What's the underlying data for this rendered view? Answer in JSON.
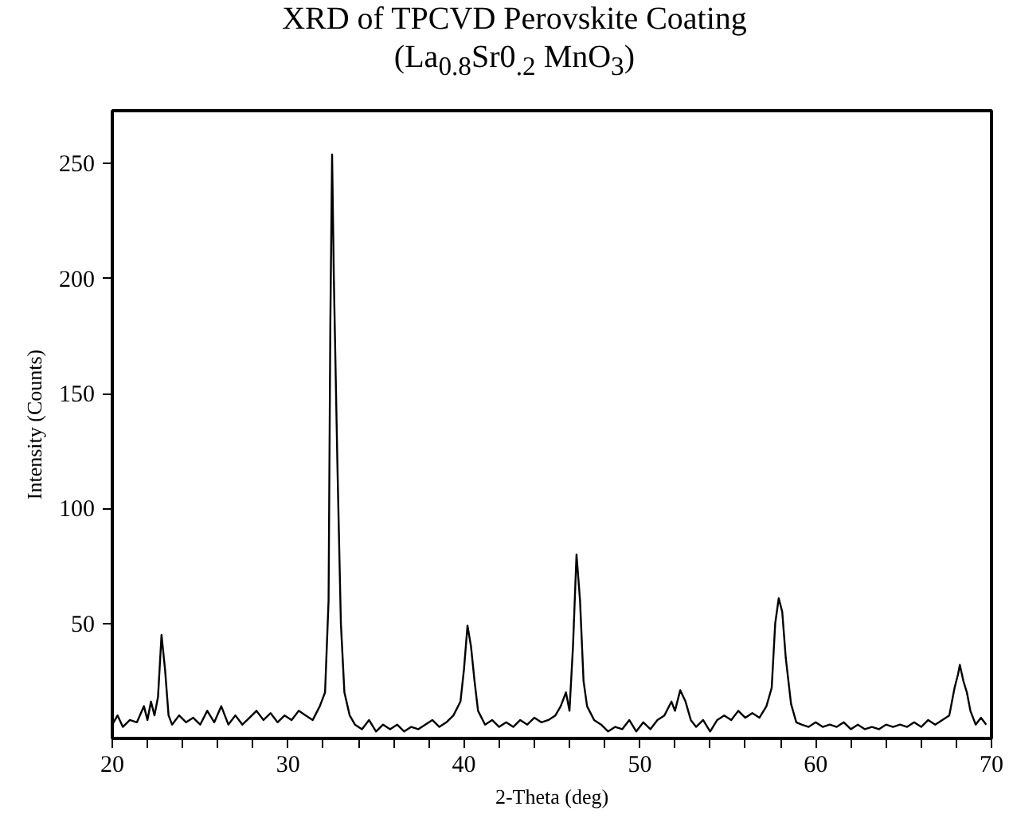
{
  "chart_data": {
    "type": "line",
    "title": "XRD of TPCVD Perovskite Coating",
    "subtitle": "(La$_{0.8}$Sr0$_{.2}$ MnO$_{3}$)",
    "xlabel": "2-Theta (deg)",
    "ylabel": "Intensity (Counts)",
    "xlim": [
      20,
      70
    ],
    "ylim": [
      0,
      273
    ],
    "xticks": [
      20,
      {
        "value": 22,
        "label": null
      },
      {
        "value": 24,
        "label": null
      },
      {
        "value": 26,
        "label": null
      },
      {
        "value": 28,
        "label": null
      },
      30,
      {
        "value": 32,
        "label": null
      },
      {
        "value": 34,
        "label": null
      },
      {
        "value": 36,
        "label": null
      },
      {
        "value": 38,
        "label": null
      },
      40,
      {
        "value": 42,
        "label": null
      },
      {
        "value": 44,
        "label": null
      },
      {
        "value": 46,
        "label": null
      },
      {
        "value": 48,
        "label": null
      },
      50,
      {
        "value": 52,
        "label": null
      },
      {
        "value": 54,
        "label": null
      },
      {
        "value": 56,
        "label": null
      },
      {
        "value": 58,
        "label": null
      },
      60,
      {
        "value": 62,
        "label": null
      },
      {
        "value": 64,
        "label": null
      },
      {
        "value": 66,
        "label": null
      },
      {
        "value": 68,
        "label": null
      },
      70
    ],
    "yticks": [
      50,
      100,
      150,
      200,
      250
    ],
    "grid": false,
    "series": [
      {
        "color": "#000000",
        "x": [
          20.0,
          20.3,
          20.6,
          21.0,
          21.4,
          21.8,
          22.0,
          22.2,
          22.4,
          22.6,
          22.8,
          23.0,
          23.2,
          23.4,
          23.8,
          24.2,
          24.6,
          25.0,
          25.4,
          25.8,
          26.2,
          26.6,
          27.0,
          27.4,
          27.8,
          28.2,
          28.6,
          29.0,
          29.4,
          29.8,
          30.2,
          30.6,
          31.0,
          31.4,
          31.8,
          32.1,
          32.3,
          32.4,
          32.5,
          32.6,
          32.8,
          33.0,
          33.2,
          33.5,
          33.8,
          34.2,
          34.6,
          35.0,
          35.4,
          35.8,
          36.2,
          36.6,
          37.0,
          37.4,
          37.8,
          38.2,
          38.6,
          39.0,
          39.4,
          39.8,
          40.0,
          40.2,
          40.4,
          40.6,
          40.8,
          41.2,
          41.6,
          42.0,
          42.4,
          42.8,
          43.2,
          43.6,
          44.0,
          44.4,
          44.8,
          45.2,
          45.5,
          45.8,
          46.0,
          46.2,
          46.4,
          46.6,
          46.8,
          47.0,
          47.4,
          47.8,
          48.2,
          48.6,
          49.0,
          49.4,
          49.8,
          50.2,
          50.6,
          51.0,
          51.4,
          51.8,
          52.0,
          52.3,
          52.6,
          52.9,
          53.2,
          53.6,
          54.0,
          54.4,
          54.8,
          55.2,
          55.6,
          56.0,
          56.4,
          56.8,
          57.2,
          57.5,
          57.7,
          57.9,
          58.1,
          58.3,
          58.6,
          58.9,
          59.2,
          59.6,
          60.0,
          60.4,
          60.8,
          61.2,
          61.6,
          62.0,
          62.4,
          62.8,
          63.2,
          63.6,
          64.0,
          64.4,
          64.8,
          65.2,
          65.6,
          66.0,
          66.4,
          66.8,
          67.2,
          67.6,
          67.9,
          68.1,
          68.2,
          68.4,
          68.6,
          68.8,
          69.1,
          69.4,
          69.7
        ],
        "values": [
          6,
          10,
          5,
          8,
          7,
          14,
          8,
          16,
          10,
          18,
          45,
          30,
          10,
          6,
          10,
          7,
          9,
          6,
          12,
          7,
          14,
          6,
          10,
          6,
          9,
          12,
          8,
          11,
          7,
          10,
          8,
          12,
          10,
          8,
          14,
          20,
          60,
          180,
          254,
          200,
          120,
          50,
          20,
          10,
          6,
          4,
          8,
          3,
          6,
          4,
          6,
          3,
          5,
          4,
          6,
          8,
          5,
          7,
          10,
          16,
          30,
          49,
          40,
          25,
          12,
          6,
          8,
          5,
          7,
          5,
          8,
          6,
          9,
          7,
          8,
          10,
          14,
          20,
          12,
          40,
          80,
          60,
          25,
          14,
          8,
          6,
          3,
          5,
          4,
          8,
          3,
          7,
          4,
          8,
          10,
          16,
          12,
          21,
          16,
          8,
          5,
          8,
          3,
          8,
          10,
          8,
          12,
          9,
          11,
          9,
          14,
          22,
          50,
          61,
          55,
          35,
          15,
          7,
          6,
          5,
          7,
          5,
          6,
          5,
          7,
          4,
          6,
          4,
          5,
          4,
          6,
          5,
          6,
          5,
          7,
          5,
          8,
          6,
          8,
          10,
          22,
          28,
          32,
          25,
          20,
          12,
          6,
          9,
          6
        ]
      }
    ]
  }
}
